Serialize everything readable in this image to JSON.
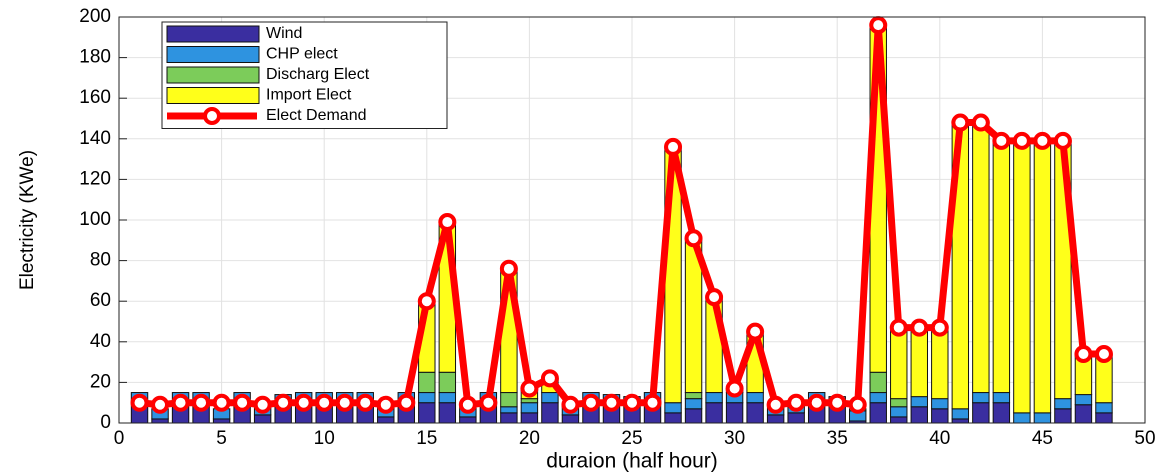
{
  "chart_data": {
    "type": "bar",
    "stacked": true,
    "xlabel": "duraion (half hour)",
    "ylabel": "Electricity (KWe)",
    "x": [
      1,
      2,
      3,
      4,
      5,
      6,
      7,
      8,
      9,
      10,
      11,
      12,
      13,
      14,
      15,
      16,
      17,
      18,
      19,
      20,
      21,
      22,
      23,
      24,
      25,
      26,
      27,
      28,
      29,
      30,
      31,
      32,
      33,
      34,
      35,
      36,
      37,
      38,
      39,
      40,
      41,
      42,
      43,
      44,
      45,
      46,
      47,
      48
    ],
    "series": [
      {
        "name": "Wind",
        "color": "#3a2ea0",
        "values": [
          10,
          2,
          10,
          10,
          2,
          10,
          4,
          9,
          10,
          10,
          10,
          10,
          3,
          10,
          10,
          10,
          3,
          10,
          5,
          5,
          10,
          4,
          10,
          9,
          9,
          10,
          5,
          7,
          10,
          10,
          10,
          4,
          5,
          10,
          9,
          1,
          10,
          3,
          8,
          7,
          2,
          10,
          10,
          0,
          0,
          7,
          9,
          5
        ]
      },
      {
        "name": "CHP elect",
        "color": "#2e93e0",
        "values": [
          5,
          5,
          5,
          5,
          5,
          5,
          5,
          5,
          5,
          5,
          5,
          5,
          5,
          5,
          5,
          5,
          5,
          5,
          3,
          5,
          5,
          5,
          5,
          5,
          4,
          5,
          5,
          5,
          5,
          5,
          5,
          5,
          5,
          5,
          4,
          5,
          5,
          5,
          5,
          5,
          5,
          5,
          5,
          5,
          5,
          5,
          5,
          5
        ]
      },
      {
        "name": "Discharg Elect",
        "color": "#7ccc5a",
        "values": [
          0,
          0,
          0,
          0,
          0,
          0,
          0,
          0,
          0,
          0,
          0,
          0,
          0,
          0,
          10,
          10,
          0,
          0,
          7,
          2,
          0,
          0,
          0,
          0,
          0,
          0,
          0,
          3,
          0,
          0,
          0,
          0,
          0,
          0,
          0,
          1,
          10,
          4,
          0,
          0,
          0,
          0,
          0,
          0,
          0,
          0,
          0,
          0
        ]
      },
      {
        "name": "Import Elect",
        "color": "#ffff1a",
        "values": [
          0,
          0,
          0,
          0,
          0,
          0,
          0,
          0,
          0,
          0,
          0,
          0,
          0,
          0,
          35,
          74,
          0,
          0,
          61,
          5,
          7,
          0,
          0,
          0,
          0,
          0,
          126,
          76,
          47,
          2,
          30,
          0,
          0,
          0,
          0,
          0,
          171,
          35,
          34,
          35,
          141,
          133,
          124,
          134,
          134,
          127,
          20,
          24
        ]
      },
      {
        "name": "Elect Demand",
        "type": "line",
        "color": "#ff0000",
        "values": [
          10,
          9,
          10,
          10,
          10,
          10,
          9,
          10,
          10,
          10,
          10,
          10,
          9,
          10,
          60,
          99,
          9,
          10,
          76,
          17,
          22,
          9,
          10,
          10,
          10,
          10,
          136,
          91,
          62,
          17,
          45,
          9,
          10,
          10,
          10,
          9,
          196,
          47,
          47,
          47,
          148,
          148,
          139,
          139,
          139,
          139,
          34,
          34
        ]
      }
    ],
    "xlim": [
      0,
      50
    ],
    "xticks": [
      0,
      5,
      10,
      15,
      20,
      25,
      30,
      35,
      40,
      45,
      50
    ],
    "ylim": [
      0,
      200
    ],
    "yticks": [
      0,
      20,
      40,
      60,
      80,
      100,
      120,
      140,
      160,
      180,
      200
    ],
    "grid": true,
    "legend": "upper left"
  }
}
